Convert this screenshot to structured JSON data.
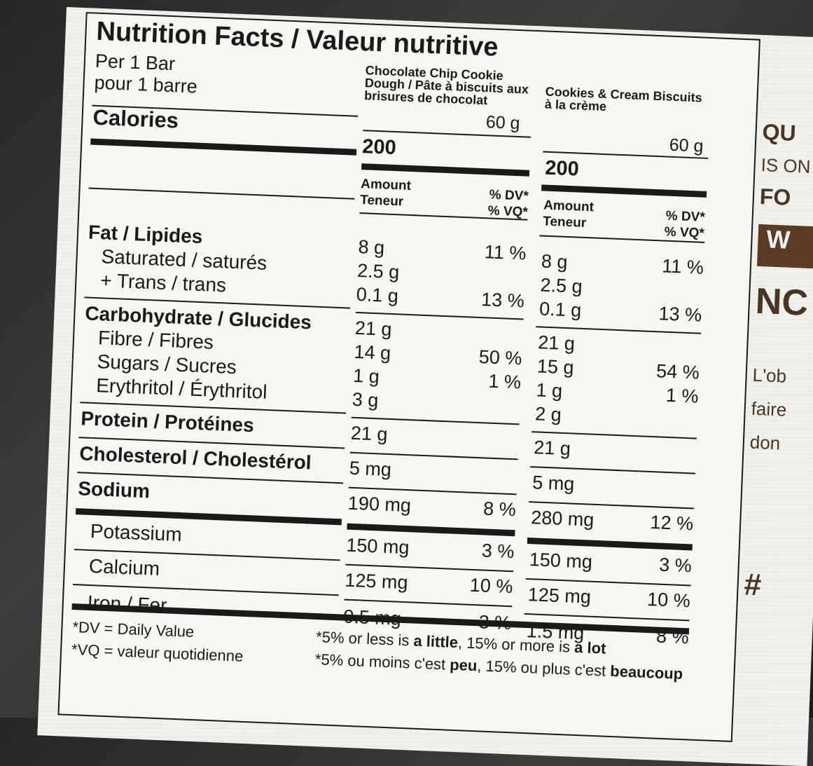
{
  "label": {
    "title": "Nutrition Facts / Valeur nutritive",
    "serving_en": "Per 1 Bar",
    "serving_fr": "pour 1 barre",
    "calories_label": "Calories",
    "amount_header": [
      "Amount",
      "Teneur"
    ],
    "dv_header": [
      "% DV*",
      "% VQ*"
    ],
    "products": [
      {
        "name": "Chocolate Chip Cookie Dough / Pâte à biscuits aux brisures de chocolat",
        "serving_size": "60 g",
        "calories": "200"
      },
      {
        "name": "Cookies & Cream Biscuits à la crème",
        "serving_size": "60 g",
        "calories": "200"
      }
    ],
    "rows": [
      {
        "label": "Fat / Lipides",
        "bold": true,
        "p1_amount": "8 g",
        "p1_dv": "11 %",
        "p2_amount": "8 g",
        "p2_dv": "11 %"
      },
      {
        "label": "Saturated / saturés",
        "bold": false,
        "p1_amount": "2.5 g",
        "p1_dv": "",
        "p2_amount": "2.5 g",
        "p2_dv": ""
      },
      {
        "label": "+ Trans / trans",
        "bold": false,
        "p1_amount": "0.1 g",
        "p1_dv": "13 %",
        "p2_amount": "0.1 g",
        "p2_dv": "13 %"
      },
      {
        "label": "Carbohydrate / Glucides",
        "bold": true,
        "p1_amount": "21 g",
        "p1_dv": "",
        "p2_amount": "21 g",
        "p2_dv": ""
      },
      {
        "label": "Fibre / Fibres",
        "bold": false,
        "p1_amount": "14 g",
        "p1_dv": "50 %",
        "p2_amount": "15 g",
        "p2_dv": "54 %"
      },
      {
        "label": "Sugars / Sucres",
        "bold": false,
        "p1_amount": "1 g",
        "p1_dv": "1 %",
        "p2_amount": "1 g",
        "p2_dv": "1 %"
      },
      {
        "label": "Erythritol / Érythritol",
        "bold": false,
        "p1_amount": "3 g",
        "p1_dv": "",
        "p2_amount": "2 g",
        "p2_dv": ""
      },
      {
        "label": "Protein / Protéines",
        "bold": true,
        "p1_amount": "21 g",
        "p1_dv": "",
        "p2_amount": "21 g",
        "p2_dv": ""
      },
      {
        "label": "Cholesterol / Cholestérol",
        "bold": true,
        "p1_amount": "5 mg",
        "p1_dv": "",
        "p2_amount": "5 mg",
        "p2_dv": ""
      },
      {
        "label": "Sodium",
        "bold": true,
        "p1_amount": "190 mg",
        "p1_dv": "8 %",
        "p2_amount": "280 mg",
        "p2_dv": "12 %"
      },
      {
        "label": "Potassium",
        "bold": false,
        "p1_amount": "150 mg",
        "p1_dv": "3 %",
        "p2_amount": "150 mg",
        "p2_dv": "3 %"
      },
      {
        "label": "Calcium",
        "bold": false,
        "p1_amount": "125 mg",
        "p1_dv": "10 %",
        "p2_amount": "125 mg",
        "p2_dv": "10 %"
      },
      {
        "label": "Iron / Fer",
        "bold": false,
        "p1_amount": "0.5 mg",
        "p1_dv": "3 %",
        "p2_amount": "1.5 mg",
        "p2_dv": "8 %"
      }
    ],
    "footnote": {
      "dv_def": "*DV = Daily Value",
      "vq_def": "*VQ = valeur quotidienne",
      "en_prefix": "*5% or less is ",
      "en_little": "a little",
      "en_mid": ", 15% or more is ",
      "en_lot": "a lot",
      "fr_prefix": "*5% ou moins c'est ",
      "fr_peu": "peu",
      "fr_mid": ", 15% ou plus c'est ",
      "fr_beaucoup": "beaucoup"
    }
  },
  "side_text": [
    "QU",
    "IS ON",
    "FO",
    "W",
    "NC",
    "L'ob",
    "faire",
    "don",
    "#"
  ]
}
